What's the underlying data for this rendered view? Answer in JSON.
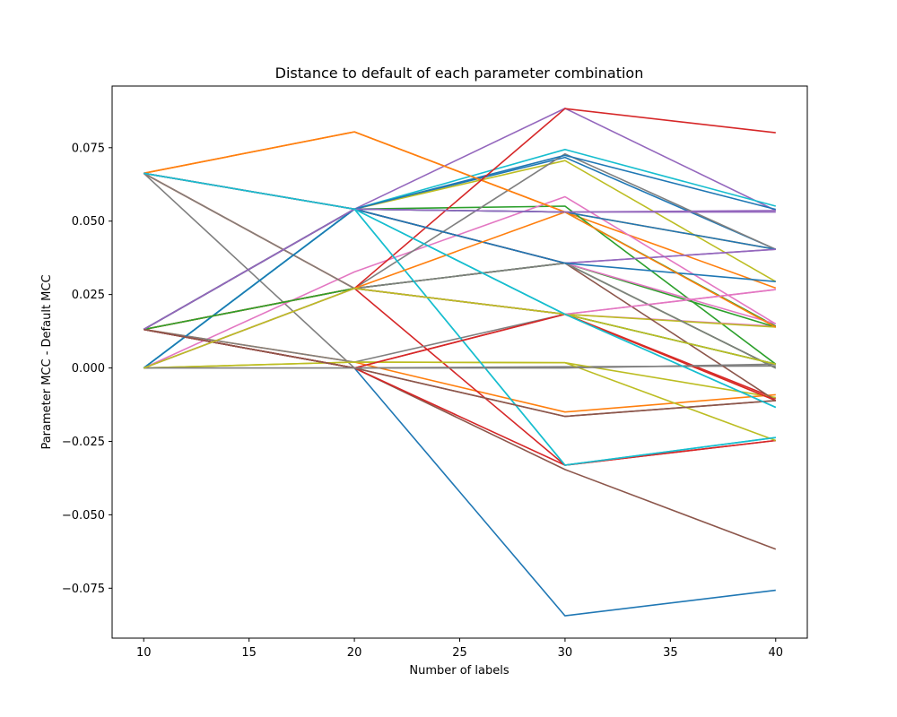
{
  "chart_data": {
    "type": "line",
    "title": "Distance to default of each parameter combination",
    "xlabel": "Number of labels",
    "ylabel": "Parameter MCC - Default MCC",
    "x": [
      10,
      20,
      30,
      40
    ],
    "xlim": [
      8.5,
      41.5
    ],
    "ylim": [
      -0.092,
      0.096
    ],
    "xticks": [
      10,
      15,
      20,
      25,
      30,
      35,
      40
    ],
    "yticks": [
      -0.075,
      -0.05,
      -0.025,
      0.0,
      0.025,
      0.05,
      0.075
    ],
    "ytick_labels": [
      "−0.075",
      "−0.050",
      "−0.025",
      "0.000",
      "0.025",
      "0.050",
      "0.075"
    ],
    "grid": false,
    "legend": "none",
    "palette": [
      "#1f77b4",
      "#ff7f0e",
      "#2ca02c",
      "#d62728",
      "#9467bd",
      "#8c564b",
      "#e377c2",
      "#7f7f7f",
      "#bcbd22",
      "#17becf"
    ],
    "series": [
      {
        "values": [
          0.0131,
          0.0541,
          0.0717,
          0.0404
        ]
      },
      {
        "values": [
          0.0663,
          0.0804,
          0.0531,
          0.0272
        ]
      },
      {
        "values": [
          0.0663,
          0.0541,
          0.0551,
          0.0013
        ]
      },
      {
        "values": [
          0.0131,
          0.0,
          0.0183,
          -0.0104
        ]
      },
      {
        "values": [
          0.0663,
          0.0541,
          0.0884,
          0.0536
        ]
      },
      {
        "values": [
          0.0131,
          0.0,
          -0.0165,
          -0.0111
        ]
      },
      {
        "values": [
          0.0663,
          0.0271,
          0.0183,
          0.0142
        ]
      },
      {
        "values": [
          0.0663,
          0.0,
          0.0004,
          0.0007
        ]
      },
      {
        "values": [
          0.0,
          0.0541,
          0.0706,
          0.0294
        ]
      },
      {
        "values": [
          0.0,
          0.0541,
          0.0744,
          0.0551
        ]
      },
      {
        "values": [
          0.0131,
          0.0,
          -0.0844,
          -0.0757
        ]
      },
      {
        "values": [
          0.0131,
          0.002,
          -0.015,
          -0.0091
        ]
      },
      {
        "values": [
          0.0663,
          0.0541,
          0.0531,
          0.0142
        ]
      },
      {
        "values": [
          0.0131,
          0.0271,
          -0.0331,
          -0.0247
        ]
      },
      {
        "values": [
          0.0131,
          0.0541,
          0.0531,
          0.0536
        ]
      },
      {
        "values": [
          0.0131,
          0.0,
          -0.0346,
          -0.0617
        ]
      },
      {
        "values": [
          0.0,
          0.0327,
          0.0583,
          0.015
        ]
      },
      {
        "values": [
          0.0,
          0.0271,
          0.0729,
          0.0404
        ]
      },
      {
        "values": [
          0.0,
          0.002,
          0.0018,
          -0.0101
        ]
      },
      {
        "values": [
          0.0,
          0.0541,
          0.0183,
          -0.0134
        ]
      },
      {
        "values": [
          0.0131,
          0.0541,
          0.0724,
          0.054
        ]
      },
      {
        "values": [
          0.0663,
          0.0804,
          0.0531,
          0.0404
        ]
      },
      {
        "values": [
          0.0663,
          0.0541,
          0.0357,
          0.0139
        ]
      },
      {
        "values": [
          0.0663,
          0.0271,
          0.0883,
          0.0801
        ]
      },
      {
        "values": [
          0.0131,
          0.0271,
          0.0357,
          0.0404
        ]
      },
      {
        "values": [
          0.0131,
          0.0271,
          0.0357,
          0.0
        ]
      },
      {
        "values": [
          0.0663,
          0.0541,
          0.0357,
          0.015
        ]
      },
      {
        "values": [
          0.0131,
          0.002,
          0.0183,
          0.0013
        ]
      },
      {
        "values": [
          0.0131,
          0.0271,
          0.0183,
          0.0139
        ]
      },
      {
        "values": [
          0.0,
          0.0541,
          -0.0331,
          -0.0237
        ]
      },
      {
        "values": [
          0.0131,
          0.0541,
          0.0531,
          0.0404
        ]
      },
      {
        "values": [
          0.0663,
          0.0271,
          0.0183,
          -0.0111
        ]
      },
      {
        "values": [
          0.0131,
          0.0271,
          0.0357,
          0.0
        ]
      },
      {
        "values": [
          0.0131,
          0.0,
          -0.0331,
          -0.0247
        ]
      },
      {
        "values": [
          0.0663,
          0.0541,
          0.0357,
          0.0404
        ]
      },
      {
        "values": [
          0.0131,
          0.0541,
          0.0357,
          -0.0111
        ]
      },
      {
        "values": [
          0.0131,
          0.0271,
          0.0183,
          0.0267
        ]
      },
      {
        "values": [
          0.0663,
          0.0271,
          0.0357,
          0.0
        ]
      },
      {
        "values": [
          0.0,
          0.002,
          0.0018,
          -0.0247
        ]
      },
      {
        "values": [
          0.0,
          0.0541,
          -0.0331,
          -0.0237
        ]
      },
      {
        "values": [
          0.0,
          0.0541,
          0.0357,
          0.0294
        ]
      },
      {
        "values": [
          0.0131,
          0.0271,
          0.0531,
          0.0139
        ]
      },
      {
        "values": [
          0.0131,
          0.0271,
          0.0183,
          0.0013
        ]
      },
      {
        "values": [
          0.0131,
          0.0,
          0.0183,
          -0.0111
        ]
      },
      {
        "values": [
          0.0131,
          0.0541,
          0.0531,
          0.0531
        ]
      },
      {
        "values": [
          0.0131,
          0.0,
          -0.0165,
          -0.0111
        ]
      },
      {
        "values": [
          0.0,
          0.0271,
          0.0183,
          0.0267
        ]
      },
      {
        "values": [
          0.0,
          0.0,
          0.0,
          0.0013
        ]
      },
      {
        "values": [
          0.0,
          0.0271,
          0.0183,
          0.0013
        ]
      },
      {
        "values": [
          0.0663,
          0.0541,
          0.0183,
          -0.0134
        ]
      }
    ]
  }
}
